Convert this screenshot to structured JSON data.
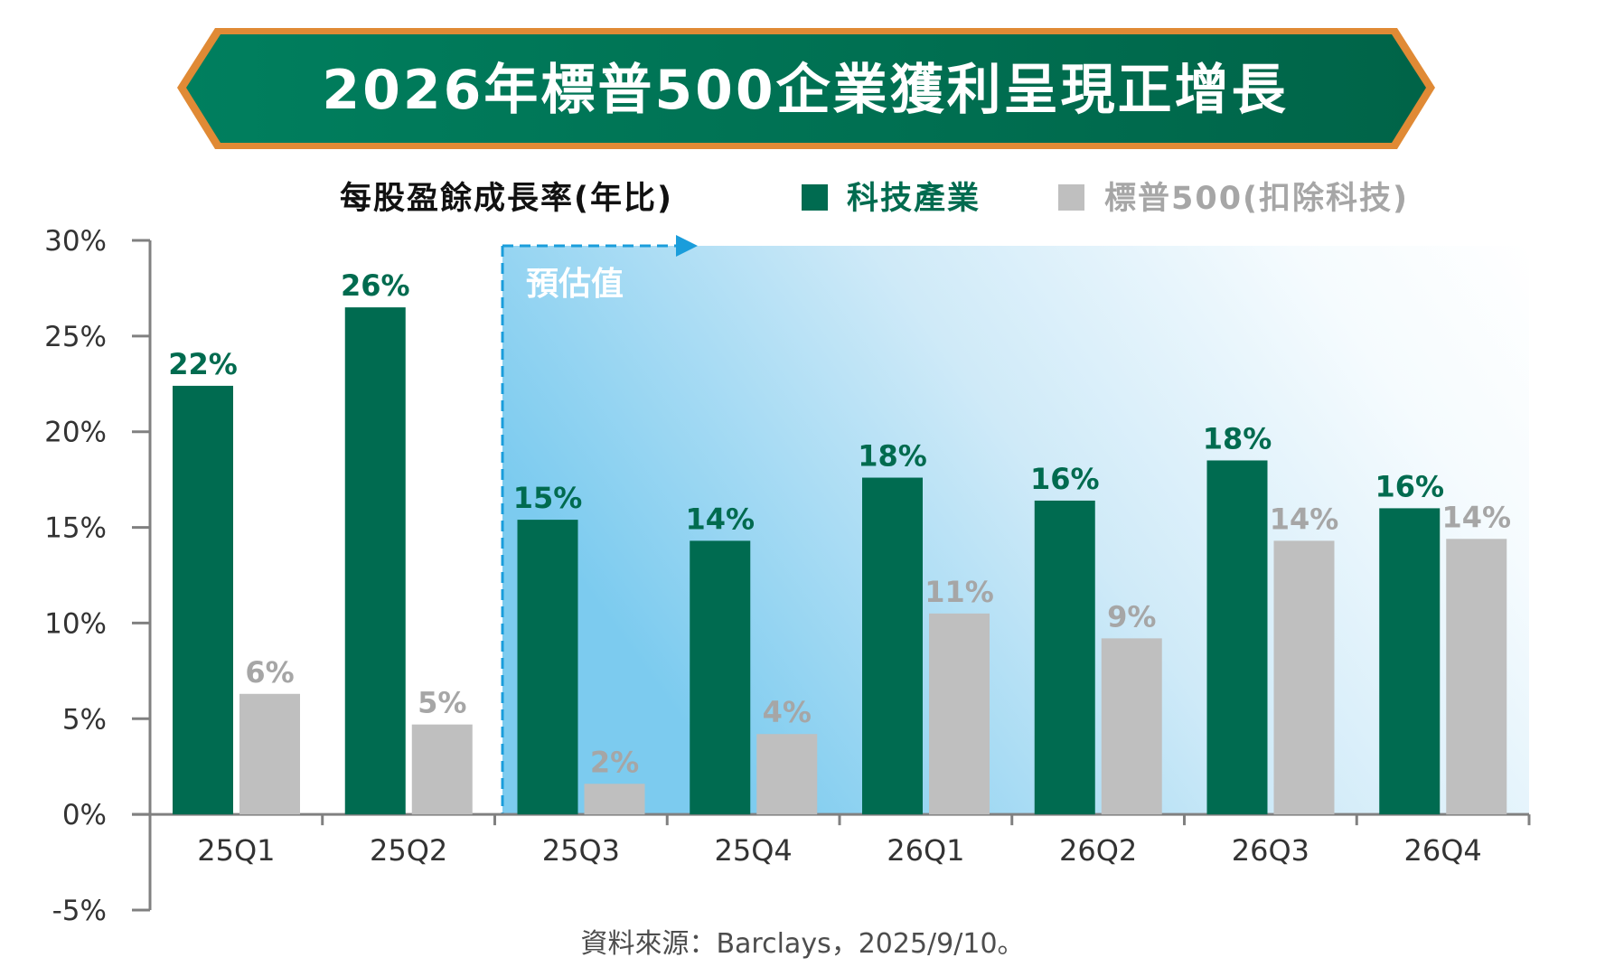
{
  "chart_data": {
    "type": "bar",
    "title": "2026年標普500企業獲利呈現正增長",
    "ylabel": "每股盈餘成長率(年比)",
    "xlabel": "",
    "categories": [
      "25Q1",
      "25Q2",
      "25Q3",
      "25Q4",
      "26Q1",
      "26Q2",
      "26Q3",
      "26Q4"
    ],
    "series": [
      {
        "name": "科技產業",
        "color": "#006b50",
        "label_color": "#006b4f",
        "values": [
          22.4,
          26.5,
          15.4,
          14.3,
          17.6,
          16.4,
          18.5,
          16.0
        ],
        "labels": [
          "22%",
          "26%",
          "15%",
          "14%",
          "18%",
          "16%",
          "18%",
          "16%"
        ]
      },
      {
        "name": "標普500(扣除科技)",
        "color": "#bfbfbf",
        "label_color": "#a6a6a6",
        "values": [
          6.3,
          4.7,
          1.6,
          4.2,
          10.5,
          9.2,
          14.3,
          14.4
        ],
        "labels": [
          "6%",
          "5%",
          "2%",
          "4%",
          "11%",
          "9%",
          "14%",
          "14%"
        ]
      }
    ],
    "ylim": [
      -5,
      30
    ],
    "yticks": [
      30,
      25,
      20,
      15,
      10,
      5,
      0,
      -5
    ],
    "ytick_labels": [
      "30%",
      "25%",
      "20%",
      "15%",
      "10%",
      "5%",
      "0%",
      "-5%"
    ],
    "grid": false,
    "legend_position": "top",
    "annotation": {
      "text": "預估值",
      "from_category": "25Q3",
      "color": "#1a9ddb"
    },
    "source": "資料來源：Barclays，2025/9/10。"
  },
  "colors": {
    "banner_green": "#007a5a",
    "banner_border": "#e08a35",
    "axis": "#808080"
  }
}
